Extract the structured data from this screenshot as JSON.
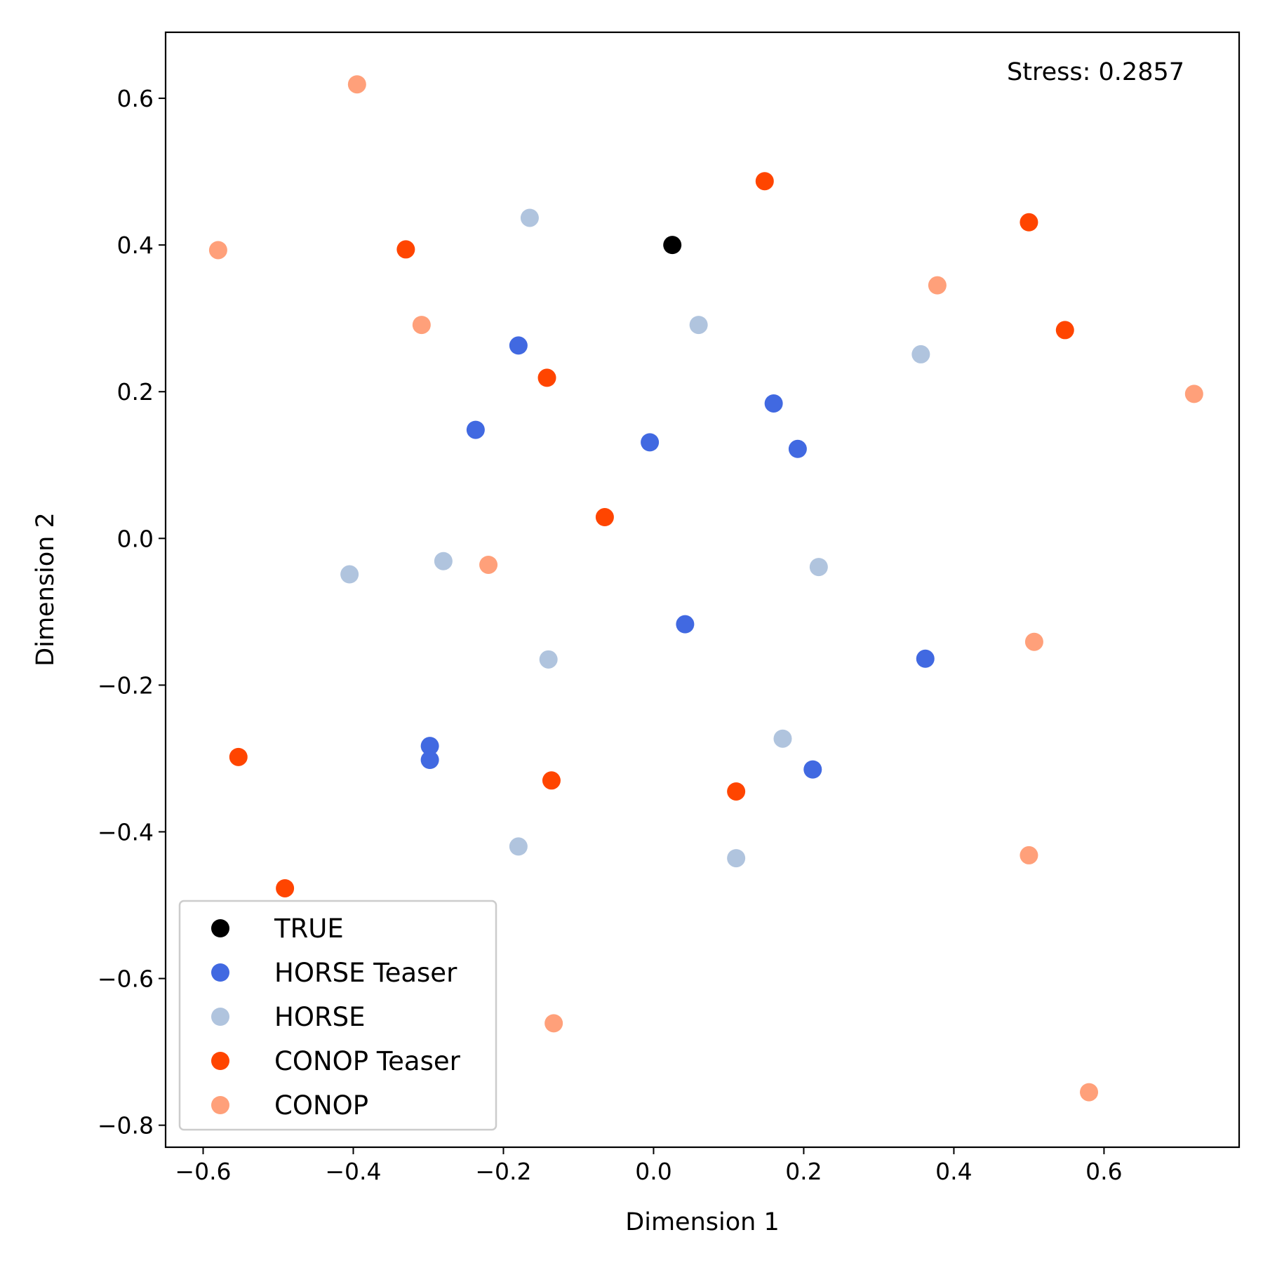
{
  "chart_data": {
    "type": "scatter",
    "title": "",
    "xlabel": "Dimension 1",
    "ylabel": "Dimension 2",
    "xlim": [
      -0.65,
      0.78
    ],
    "ylim": [
      -0.83,
      0.69
    ],
    "xticks": [
      -0.6,
      -0.4,
      -0.2,
      0.0,
      0.2,
      0.4,
      0.6
    ],
    "yticks": [
      -0.8,
      -0.6,
      -0.4,
      -0.2,
      0.0,
      0.2,
      0.4,
      0.6
    ],
    "xtick_labels": [
      "−0.6",
      "−0.4",
      "−0.2",
      "0.0",
      "0.2",
      "0.4",
      "0.6"
    ],
    "ytick_labels": [
      "−0.8",
      "−0.6",
      "−0.4",
      "−0.2",
      "0.0",
      "0.2",
      "0.4",
      "0.6"
    ],
    "grid": false,
    "legend_position": "lower-left",
    "annotation": "Stress: 0.2857",
    "series": [
      {
        "name": "TRUE",
        "color": "#000000",
        "points": [
          [
            0.025,
            0.4
          ]
        ]
      },
      {
        "name": "HORSE Teaser",
        "color": "#4169e1",
        "points": [
          [
            -0.18,
            0.263
          ],
          [
            -0.237,
            0.148
          ],
          [
            -0.005,
            0.131
          ],
          [
            0.16,
            0.184
          ],
          [
            0.192,
            0.122
          ],
          [
            0.042,
            -0.117
          ],
          [
            0.362,
            -0.164
          ],
          [
            -0.298,
            -0.283
          ],
          [
            -0.298,
            -0.302
          ],
          [
            0.212,
            -0.315
          ]
        ]
      },
      {
        "name": "HORSE",
        "color": "#b0c4de",
        "points": [
          [
            -0.165,
            0.437
          ],
          [
            0.06,
            0.291
          ],
          [
            0.356,
            0.251
          ],
          [
            -0.405,
            -0.049
          ],
          [
            -0.28,
            -0.031
          ],
          [
            0.22,
            -0.039
          ],
          [
            -0.14,
            -0.165
          ],
          [
            0.172,
            -0.273
          ],
          [
            -0.18,
            -0.42
          ],
          [
            0.11,
            -0.436
          ]
        ]
      },
      {
        "name": "CONOP Teaser",
        "color": "#ff4500",
        "points": [
          [
            0.148,
            0.487
          ],
          [
            0.5,
            0.431
          ],
          [
            -0.33,
            0.394
          ],
          [
            0.548,
            0.284
          ],
          [
            -0.142,
            0.219
          ],
          [
            -0.065,
            0.029
          ],
          [
            -0.553,
            -0.298
          ],
          [
            -0.136,
            -0.33
          ],
          [
            0.11,
            -0.345
          ],
          [
            -0.491,
            -0.477
          ]
        ]
      },
      {
        "name": "CONOP",
        "color": "#ffa07a",
        "points": [
          [
            -0.395,
            0.619
          ],
          [
            -0.58,
            0.393
          ],
          [
            0.378,
            0.345
          ],
          [
            -0.309,
            0.291
          ],
          [
            0.72,
            0.197
          ],
          [
            -0.22,
            -0.036
          ],
          [
            0.507,
            -0.141
          ],
          [
            0.5,
            -0.432
          ],
          [
            -0.133,
            -0.661
          ],
          [
            0.58,
            -0.755
          ]
        ]
      }
    ]
  }
}
